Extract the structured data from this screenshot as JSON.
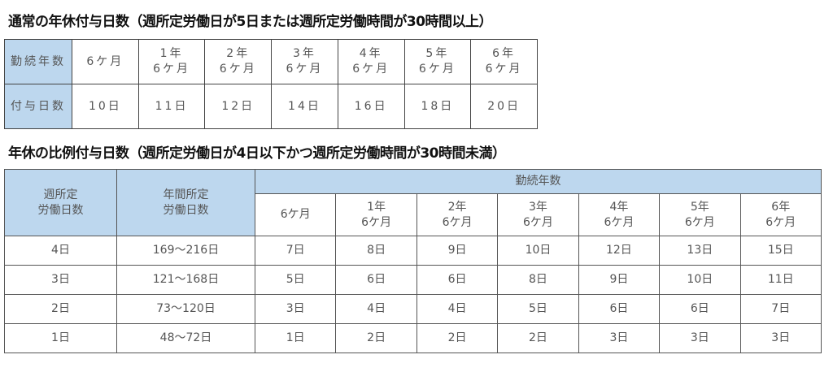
{
  "standard": {
    "title": "通常の年休付与日数（週所定労働日が5日または週所定労働時間が30時間以上）",
    "row_headers": [
      "勤続年数",
      "付与日数"
    ],
    "years": [
      "6ケ月",
      "1年\n6ケ月",
      "2年\n6ケ月",
      "3年\n6ケ月",
      "4年\n6ケ月",
      "5年\n6ケ月",
      "6年\n6ケ月"
    ],
    "days": [
      "10日",
      "11日",
      "12日",
      "14日",
      "16日",
      "18日",
      "20日"
    ]
  },
  "proportional": {
    "title": "年休の比例付与日数（週所定労働日が4日以下かつ週所定労働時間が30時間未満）",
    "col1_header": "週所定\n労働日数",
    "col2_header": "年間所定\n労働日数",
    "group_header": "勤続年数",
    "years": [
      "6ケ月",
      "1年\n6ケ月",
      "2年\n6ケ月",
      "3年\n6ケ月",
      "4年\n6ケ月",
      "5年\n6ケ月",
      "6年\n6ケ月"
    ],
    "rows": [
      {
        "weekly": "4日",
        "annual": "169～216日",
        "days": [
          "7日",
          "8日",
          "9日",
          "10日",
          "12日",
          "13日",
          "15日"
        ]
      },
      {
        "weekly": "3日",
        "annual": "121～168日",
        "days": [
          "5日",
          "6日",
          "6日",
          "8日",
          "9日",
          "10日",
          "11日"
        ]
      },
      {
        "weekly": "2日",
        "annual": "73～120日",
        "days": [
          "3日",
          "4日",
          "4日",
          "5日",
          "6日",
          "6日",
          "7日"
        ]
      },
      {
        "weekly": "1日",
        "annual": "48～72日",
        "days": [
          "1日",
          "2日",
          "2日",
          "2日",
          "3日",
          "3日",
          "3日"
        ]
      }
    ]
  },
  "colors": {
    "header_bg": "#bdd7ee"
  }
}
